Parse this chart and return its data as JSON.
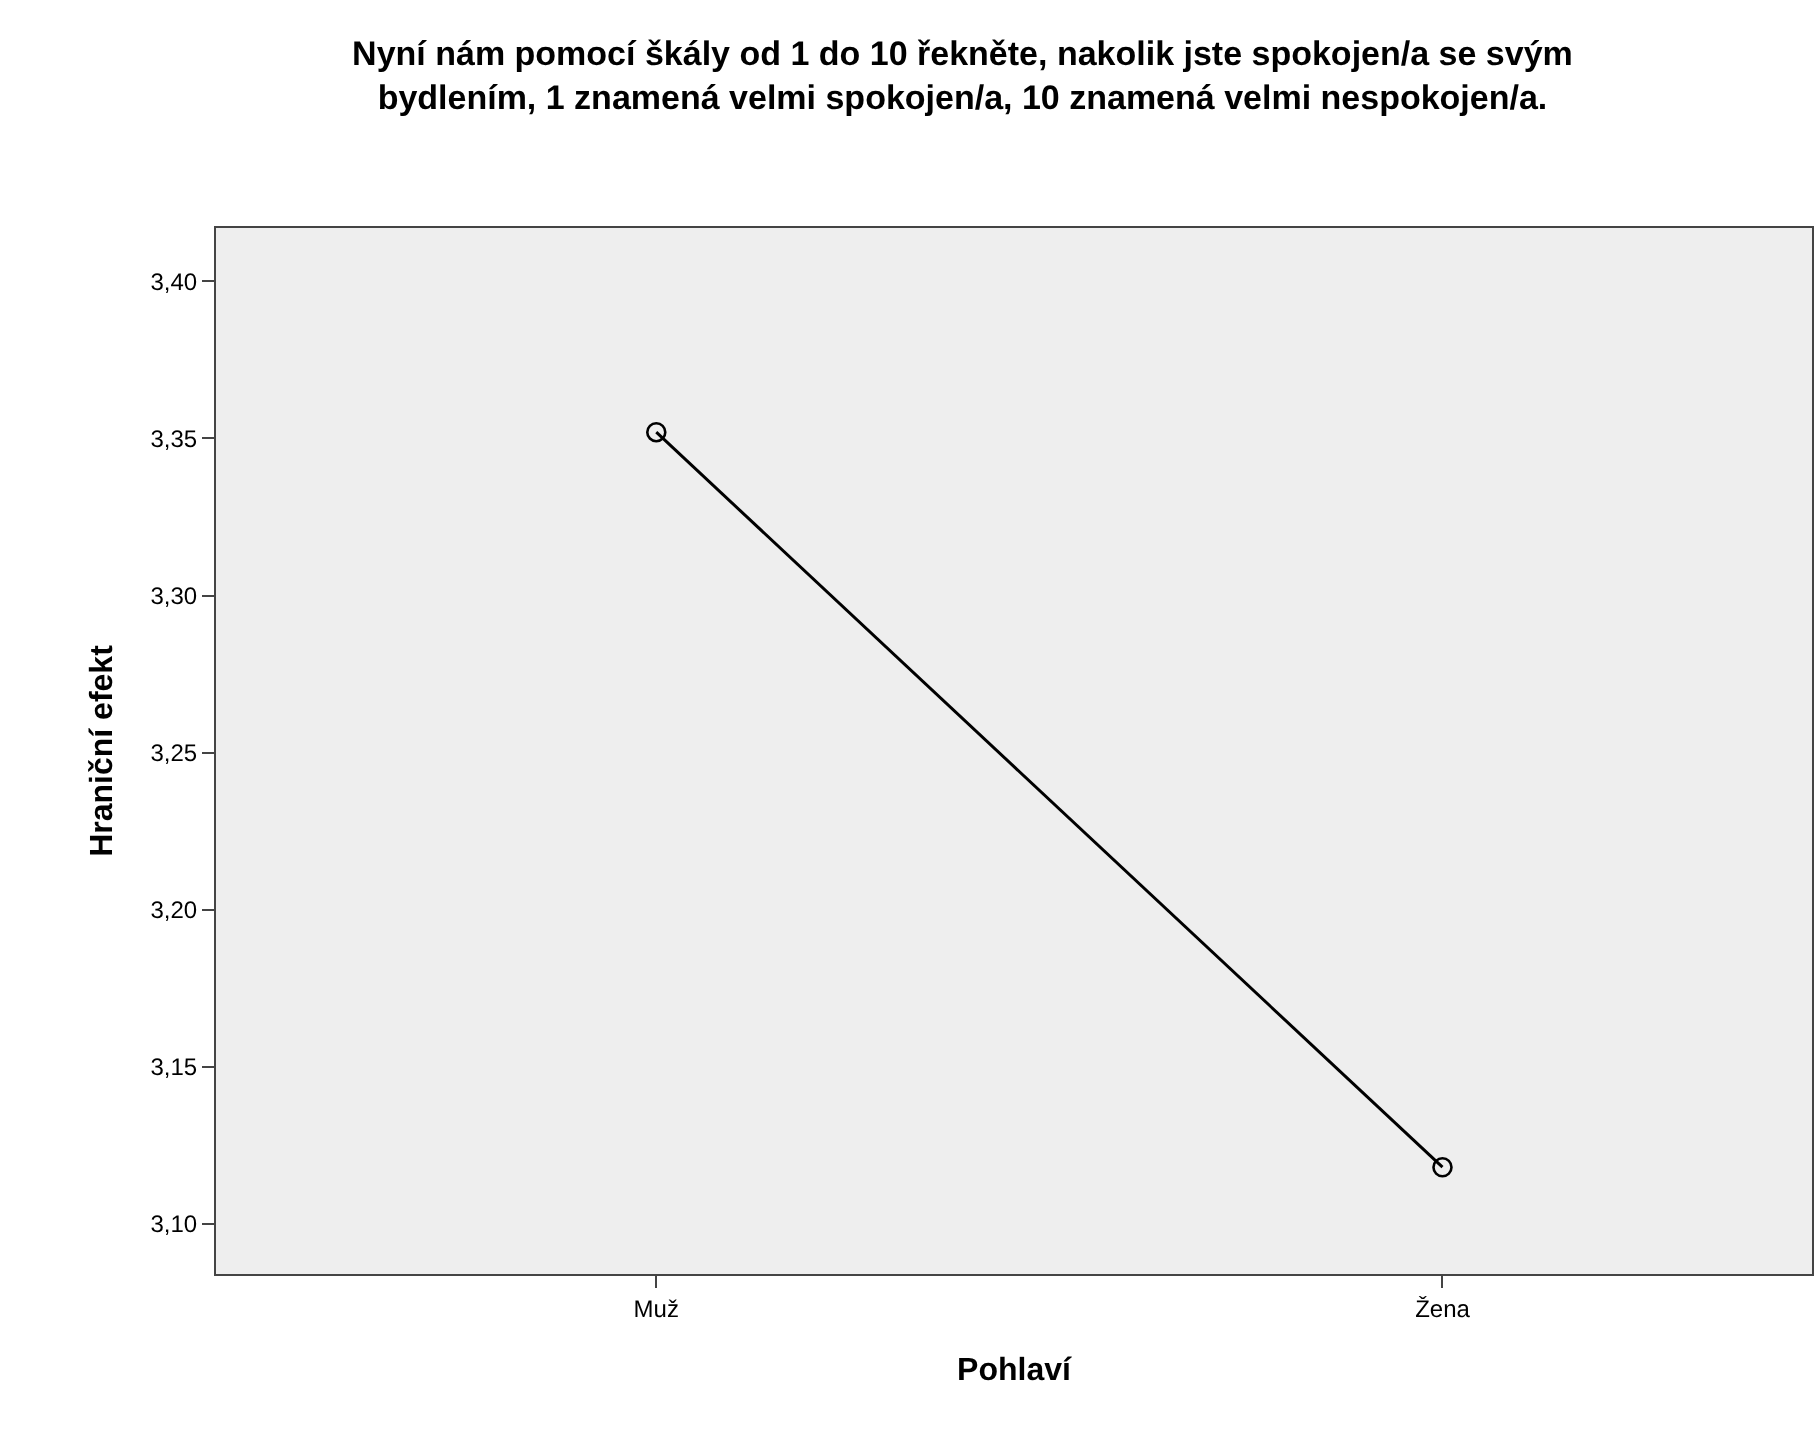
{
  "chart_data": {
    "type": "line",
    "title": "Nyní nám pomocí škály od 1 do 10 řekněte, nakolik jste spokojen/a se svým\nbydlením, 1 znamená velmi spokojen/a, 10 znamená velmi nespokojen/a.",
    "xlabel": "Pohlaví",
    "ylabel": "Hraniční efekt",
    "categories": [
      "Muž",
      "Žena"
    ],
    "series": [
      {
        "color": "#000000",
        "values": [
          3.352,
          3.118
        ]
      }
    ],
    "ylim": [
      3.084,
      3.417
    ],
    "yticks": [
      {
        "value": 3.1,
        "label": "3,10"
      },
      {
        "value": 3.15,
        "label": "3,15"
      },
      {
        "value": 3.2,
        "label": "3,20"
      },
      {
        "value": 3.25,
        "label": "3,25"
      },
      {
        "value": 3.3,
        "label": "3,30"
      },
      {
        "value": 3.35,
        "label": "3,35"
      },
      {
        "value": 3.4,
        "label": "3,40"
      }
    ],
    "grid": false,
    "marker": "circle",
    "line_style": "solid"
  }
}
